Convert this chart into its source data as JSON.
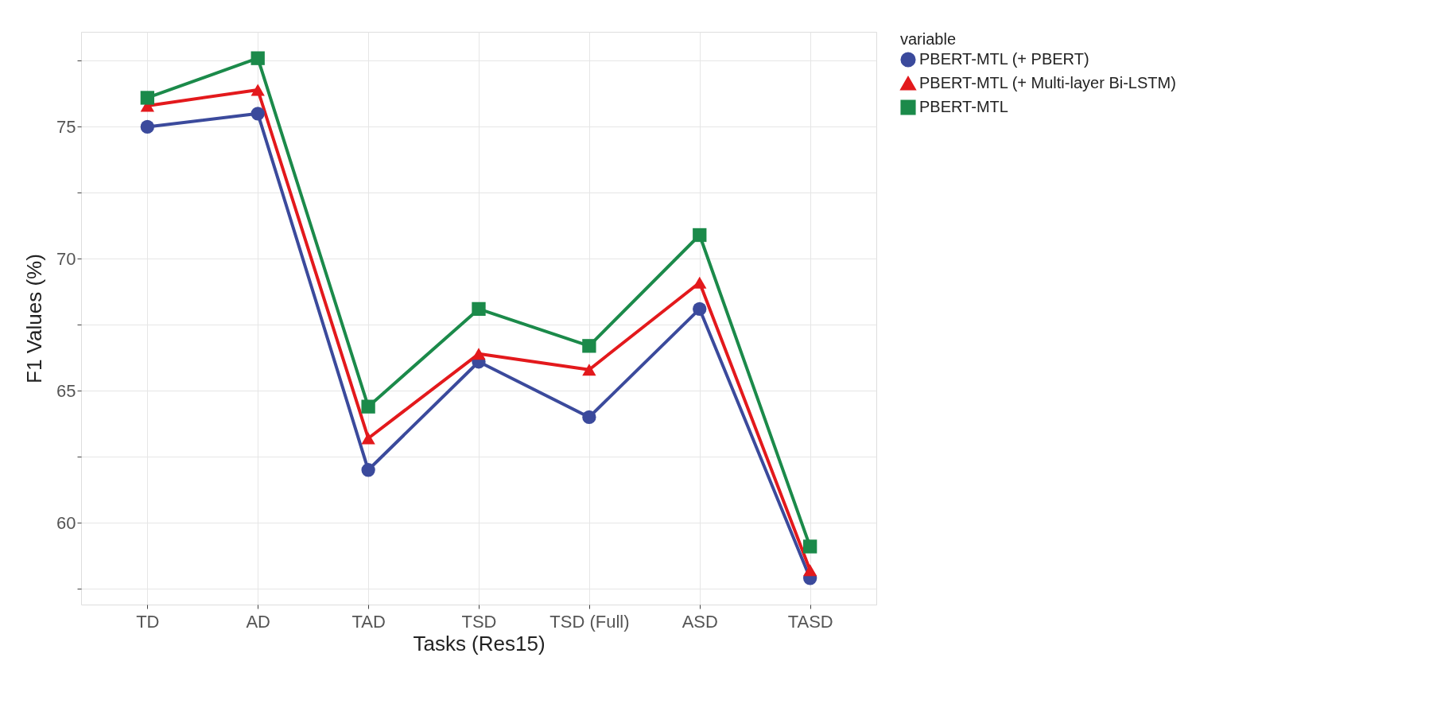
{
  "chart_data": {
    "type": "line",
    "xlabel": "Tasks (Res15)",
    "ylabel": "F1 Values (%)",
    "legend_title": "variable",
    "legend": "right",
    "grid": true,
    "categories": [
      "TD",
      "AD",
      "TAD",
      "TSD",
      "TSD (Full)",
      "ASD",
      "TASD"
    ],
    "ylim": [
      56.9,
      78.6
    ],
    "yticks": [
      {
        "value": 57.5,
        "label": null
      },
      60,
      {
        "value": 62.5,
        "label": null
      },
      65,
      {
        "value": 67.5,
        "label": null
      },
      70,
      {
        "value": 72.5,
        "label": null
      },
      75,
      {
        "value": 77.5,
        "label": null
      }
    ],
    "series": [
      {
        "name": "PBERT-MTL (+ PBERT)",
        "color": "#3b4a9c",
        "marker": "circle",
        "values": [
          75.0,
          75.5,
          62.0,
          66.1,
          64.0,
          68.1,
          57.9
        ]
      },
      {
        "name": "PBERT-MTL (+ Multi-layer Bi-LSTM)",
        "color": "#e3191c",
        "marker": "triangle",
        "values": [
          75.8,
          76.4,
          63.2,
          66.4,
          65.8,
          69.1,
          58.2
        ]
      },
      {
        "name": "PBERT-MTL",
        "color": "#1b8a4a",
        "marker": "square",
        "values": [
          76.1,
          77.6,
          64.4,
          68.1,
          66.7,
          70.9,
          59.1
        ]
      }
    ]
  }
}
